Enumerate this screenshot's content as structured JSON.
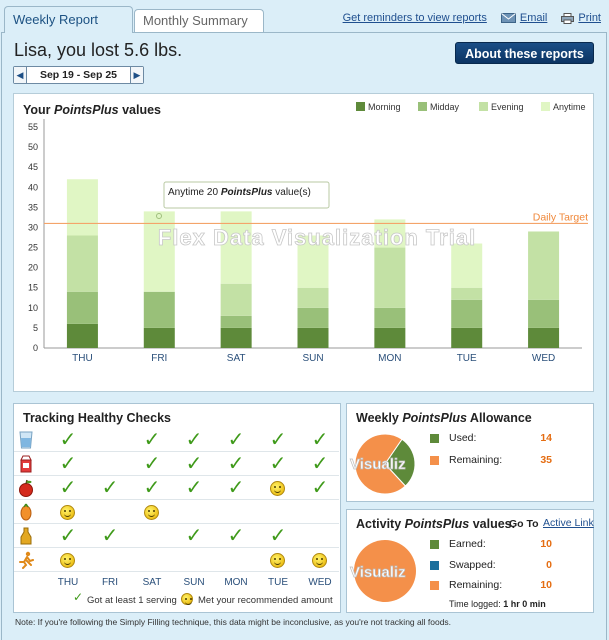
{
  "tabs": {
    "weekly": "Weekly Report",
    "monthly": "Monthly Summary"
  },
  "top_links": {
    "reminders": "Get reminders to view reports",
    "email": "Email",
    "print": "Print"
  },
  "headline": "Lisa, you lost 5.6 lbs.",
  "about_button": "About these reports",
  "date_range": "Sep 19 - Sep 25",
  "chart_panel": {
    "title_prefix": "Your ",
    "title_brand": "PointsPlus",
    "title_suffix": " values"
  },
  "chart_data": {
    "type": "bar",
    "stacked": true,
    "categories": [
      "THU",
      "FRI",
      "SAT",
      "SUN",
      "MON",
      "TUE",
      "WED"
    ],
    "series": [
      {
        "name": "Morning",
        "color": "#5e8a3a",
        "values": [
          6,
          5,
          5,
          5,
          5,
          5,
          5
        ]
      },
      {
        "name": "Midday",
        "color": "#99c079",
        "values": [
          8,
          9,
          3,
          5,
          5,
          7,
          7
        ]
      },
      {
        "name": "Evening",
        "color": "#c3e1a5",
        "values": [
          14,
          0,
          8,
          5,
          15,
          3,
          17
        ]
      },
      {
        "name": "Anytime",
        "color": "#e0f6c4",
        "values": [
          14,
          20,
          18,
          13,
          7,
          11,
          0
        ]
      }
    ],
    "ylim": [
      0,
      55
    ],
    "yticks": [
      0,
      5,
      10,
      15,
      20,
      25,
      30,
      35,
      40,
      45,
      50,
      55
    ],
    "target": 31,
    "target_label": "Daily Target",
    "tooltip": {
      "prefix": "Anytime 20 ",
      "brand": "PointsPlus",
      "suffix": " value(s)"
    },
    "watermark": "Flex Data Visualization Trial"
  },
  "checks": {
    "title": "Tracking Healthy Checks",
    "days": [
      "THU",
      "FRI",
      "SAT",
      "SUN",
      "MON",
      "TUE",
      "WED"
    ],
    "rows": [
      {
        "icon": "water-glass-icon",
        "cells": [
          "check",
          "",
          "check",
          "check",
          "check",
          "check",
          "check"
        ]
      },
      {
        "icon": "milk-carton-icon",
        "cells": [
          "check",
          "",
          "check",
          "check",
          "check",
          "check",
          "check"
        ]
      },
      {
        "icon": "apple-icon",
        "cells": [
          "check",
          "check",
          "check",
          "check",
          "check",
          "smile",
          "check"
        ]
      },
      {
        "icon": "carrot-icon",
        "cells": [
          "smile",
          "",
          "smile",
          "",
          "",
          "",
          ""
        ]
      },
      {
        "icon": "oil-bottle-icon",
        "cells": [
          "check",
          "check",
          "",
          "check",
          "check",
          "check",
          ""
        ]
      },
      {
        "icon": "runner-icon",
        "cells": [
          "smile",
          "",
          "",
          "",
          "",
          "smile",
          "smile"
        ]
      }
    ],
    "check_glyph": "✓",
    "legend_check": "Got at least 1 serving",
    "legend_smile": "Met your recommended amount"
  },
  "allowance": {
    "title_prefix": "Weekly ",
    "title_brand": "PointsPlus",
    "title_suffix": " Allowance",
    "used_label": "Used:",
    "used_value": "14",
    "remaining_label": "Remaining:",
    "remaining_value": "35",
    "used_color": "#5e8a3a",
    "remaining_color": "#f4904a",
    "watermark": "Visualiz"
  },
  "activity": {
    "title_prefix": "Activity ",
    "title_brand": "PointsPlus",
    "title_suffix": " values.",
    "goto_label": "Go To",
    "link": "Active Link",
    "earned_label": "Earned:",
    "earned_value": "10",
    "swapped_label": "Swapped:",
    "swapped_value": "0",
    "remaining_label": "Remaining:",
    "remaining_value": "10",
    "time_label": "Time logged:",
    "time_value": "1 hr 0 min",
    "earned_color": "#5e8a3a",
    "swapped_color": "#1b6f9c",
    "remaining_color": "#f4904a",
    "watermark": "Visualiz"
  },
  "note": "Note: If you're following the Simply Filling technique, this data might be inconclusive, as you're not tracking all foods."
}
